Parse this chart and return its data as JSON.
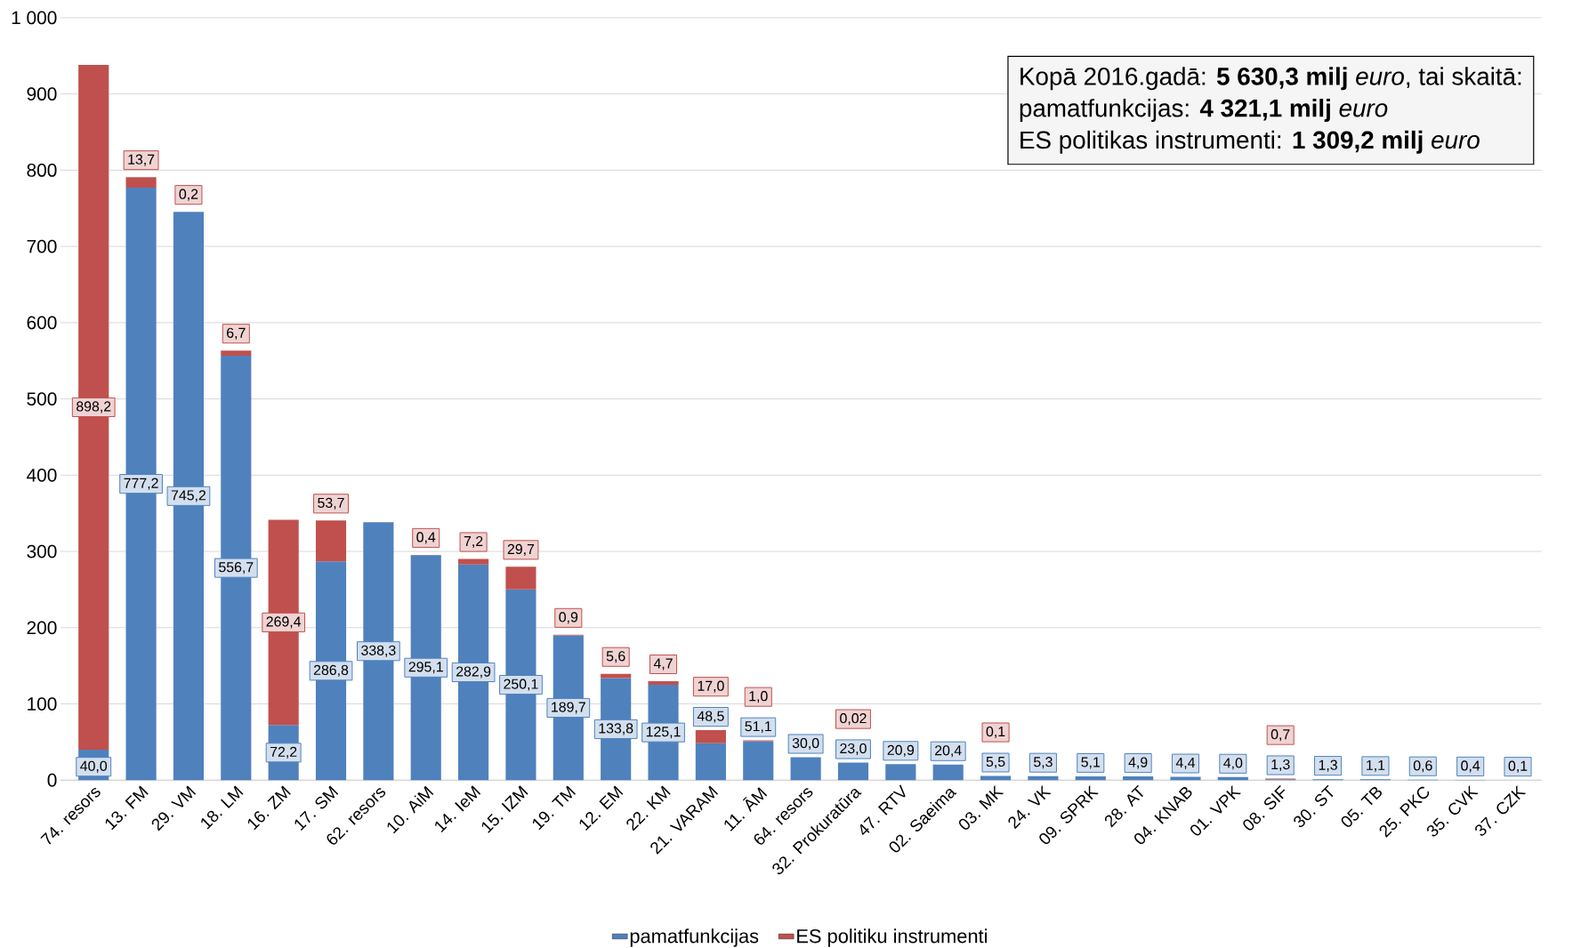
{
  "chart_data": {
    "type": "bar",
    "stacked": true,
    "grid": "y",
    "legend": "bottom",
    "categories": [
      "74. resors",
      "13. FM",
      "29. VM",
      "18. LM",
      "16. ZM",
      "17. SM",
      "62. resors",
      "10. AiM",
      "14. IeM",
      "15. IZM",
      "19. TM",
      "12. EM",
      "22. KM",
      "21. VARAM",
      "11. ĀM",
      "64. resors",
      "32. Prokuratūra",
      "47. RTV",
      "02. Saeima",
      "03. MK",
      "24. VK",
      "09. SPRK",
      "28. AT",
      "04. KNAB",
      "01. VPK",
      "08. SIF",
      "30. ST",
      "05. TB",
      "25. PKC",
      "35. CVK",
      "37. CZK"
    ],
    "series": [
      {
        "name": "pamatfunkcijas",
        "color": "#4f81bd",
        "values": [
          40.0,
          777.2,
          745.2,
          556.7,
          72.2,
          286.8,
          338.3,
          295.1,
          282.9,
          250.1,
          189.7,
          133.8,
          125.1,
          48.5,
          51.1,
          30.0,
          23.0,
          20.9,
          20.4,
          5.5,
          5.3,
          5.1,
          4.9,
          4.4,
          4.0,
          1.3,
          1.3,
          1.1,
          0.6,
          0.4,
          0.1
        ],
        "value_labels": [
          "40,0",
          "777,2",
          "745,2",
          "556,7",
          "72,2",
          "286,8",
          "338,3",
          "295,1",
          "282,9",
          "250,1",
          "189,7",
          "133,8",
          "125,1",
          "48,5",
          "51,1",
          "30,0",
          "23,0",
          "20,9",
          "20,4",
          "5,5",
          "5,3",
          "5,1",
          "4,9",
          "4,4",
          "4,0",
          "1,3",
          "1,3",
          "1,1",
          "0,6",
          "0,4",
          "0,1"
        ]
      },
      {
        "name": "ES politiku instrumenti",
        "color": "#c0504d",
        "values": [
          898.2,
          13.7,
          0.2,
          6.7,
          269.4,
          53.7,
          null,
          0.4,
          7.2,
          29.7,
          0.9,
          5.6,
          4.7,
          17.0,
          1.0,
          null,
          0.02,
          null,
          null,
          0.1,
          null,
          null,
          null,
          null,
          null,
          0.7,
          null,
          null,
          null,
          null,
          null
        ],
        "value_labels": [
          "898,2",
          "13,7",
          "0,2",
          "6,7",
          "269,4",
          "53,7",
          null,
          "0,4",
          "7,2",
          "29,7",
          "0,9",
          "5,6",
          "4,7",
          "17,0",
          "1,0",
          null,
          "0,02",
          null,
          null,
          "0,1",
          null,
          null,
          null,
          null,
          null,
          "0,7",
          null,
          null,
          null,
          null,
          null
        ]
      }
    ],
    "ylim": [
      0,
      1000
    ],
    "yticks": [
      0,
      100,
      200,
      300,
      400,
      500,
      600,
      700,
      800,
      900,
      {
        "value": 1000,
        "label": "1 000"
      }
    ],
    "annotations": [
      "Kopā 2016.gadā: **5 630,3 milj** *euro*, tai skaitā:",
      "pamatfunkcijas: **4 321,1 milj** *euro*",
      "ES politikas instrumenti: **1 309,2 milj** *euro*"
    ]
  }
}
